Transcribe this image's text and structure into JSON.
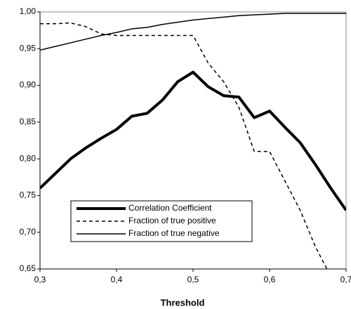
{
  "chart_data": {
    "type": "line",
    "xlabel": "Threshold",
    "x": [
      0.3,
      0.32,
      0.34,
      0.36,
      0.38,
      0.4,
      0.42,
      0.44,
      0.46,
      0.48,
      0.5,
      0.52,
      0.54,
      0.56,
      0.58,
      0.6,
      0.62,
      0.64,
      0.66,
      0.68,
      0.7
    ],
    "series": [
      {
        "name": "Correlation Coefficient",
        "color": "#000000",
        "line_width": 4,
        "dash": false,
        "values": [
          0.76,
          0.78,
          0.8,
          0.815,
          0.828,
          0.84,
          0.858,
          0.862,
          0.88,
          0.905,
          0.918,
          0.898,
          0.886,
          0.884,
          0.856,
          0.865,
          0.843,
          0.822,
          0.792,
          0.76,
          0.73
        ]
      },
      {
        "name": "Fraction of true positive",
        "color": "#000000",
        "line_width": 1.5,
        "dash": true,
        "values": [
          0.984,
          0.984,
          0.985,
          0.98,
          0.97,
          0.968,
          0.968,
          0.968,
          0.968,
          0.968,
          0.968,
          0.93,
          0.905,
          0.87,
          0.81,
          0.81,
          0.77,
          0.73,
          0.68,
          0.64,
          null
        ]
      },
      {
        "name": "Fraction of true negative",
        "color": "#000000",
        "line_width": 1.5,
        "dash": false,
        "values": [
          0.948,
          0.953,
          0.958,
          0.963,
          0.968,
          0.972,
          0.977,
          0.979,
          0.983,
          0.986,
          0.989,
          0.991,
          0.993,
          0.995,
          0.996,
          0.997,
          0.998,
          0.998,
          0.998,
          0.998,
          0.998
        ]
      }
    ],
    "xlim": [
      0.3,
      0.7
    ],
    "xticks": [
      {
        "value": 0.3,
        "label": "0,3"
      },
      {
        "value": 0.4,
        "label": "0,4"
      },
      {
        "value": 0.5,
        "label": "0,5"
      },
      {
        "value": 0.6,
        "label": "0,6"
      },
      {
        "value": 0.7,
        "label": "0,7"
      }
    ],
    "ylim": [
      0.65,
      1.0
    ],
    "yticks": [
      {
        "value": 0.65,
        "label": "0,65"
      },
      {
        "value": 0.7,
        "label": "0,70"
      },
      {
        "value": 0.75,
        "label": "0,75"
      },
      {
        "value": 0.8,
        "label": "0,80"
      },
      {
        "value": 0.85,
        "label": "0,85"
      },
      {
        "value": 0.9,
        "label": "0,90"
      },
      {
        "value": 0.95,
        "label": "0,95"
      },
      {
        "value": 1.0,
        "label": "1,00"
      }
    ],
    "grid": false,
    "legend": "lower left"
  }
}
